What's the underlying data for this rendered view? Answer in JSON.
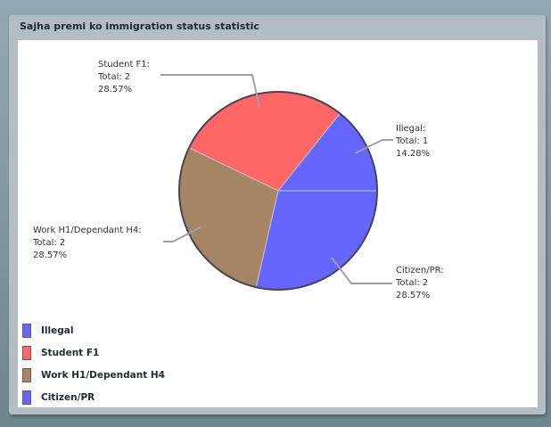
{
  "chart_data": {
    "type": "pie",
    "title": "Sajha premi ko immigration status statistic",
    "slices": [
      {
        "label": "Illegal",
        "value": 1,
        "percent": "14.28%",
        "color": "#6666ff",
        "callout": [
          "Illegal:",
          "Total: 1",
          " 14.28%"
        ]
      },
      {
        "label": "Student F1",
        "value": 2,
        "percent": "28.57%",
        "color": "#ff6666",
        "callout": [
          "Student F1:",
          "Total: 2",
          " 28.57%"
        ]
      },
      {
        "label": "Work H1/Dependant H4",
        "value": 2,
        "percent": "28.57%",
        "color": "#a68565",
        "callout": [
          "Work H1/Dependant H4:",
          "Total: 2",
          " 28.57%"
        ]
      },
      {
        "label": "Citizen/PR",
        "value": 2,
        "percent": "28.57%",
        "color": "#6666ff",
        "callout": [
          "Citizen/PR:",
          "Total: 2",
          " 28.57%"
        ]
      }
    ],
    "legend": "bottom-left"
  }
}
